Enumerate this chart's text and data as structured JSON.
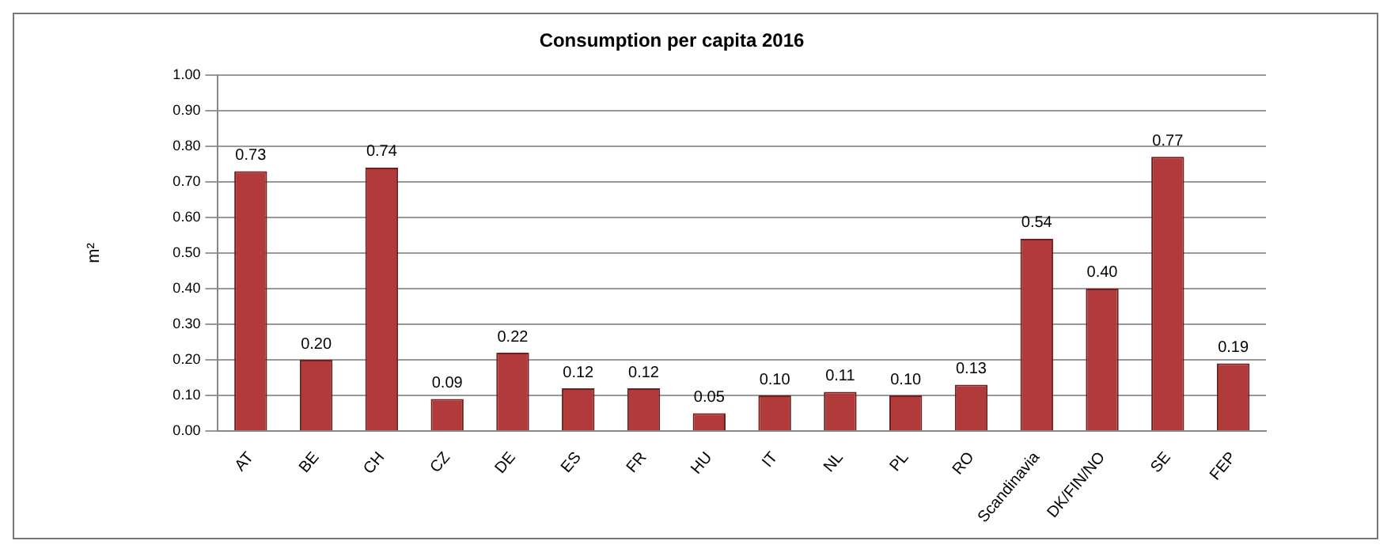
{
  "chart_data": {
    "type": "bar",
    "title": "Consumption per capita 2016",
    "ylabel": "m²",
    "categories": [
      "AT",
      "BE",
      "CH",
      "CZ",
      "DE",
      "ES",
      "FR",
      "HU",
      "IT",
      "NL",
      "PL",
      "RO",
      "Scandinavia",
      "DK/FIN/NO",
      "SE",
      "FEP"
    ],
    "values": [
      0.73,
      0.2,
      0.74,
      0.09,
      0.22,
      0.12,
      0.12,
      0.05,
      0.1,
      0.11,
      0.1,
      0.13,
      0.54,
      0.4,
      0.77,
      0.19
    ],
    "value_labels": [
      "0.73",
      "0.20",
      "0.74",
      "0.09",
      "0.22",
      "0.12",
      "0.12",
      "0.05",
      "0.10",
      "0.11",
      "0.10",
      "0.13",
      "0.54",
      "0.40",
      "0.77",
      "0.19"
    ],
    "color": "#b13b3b",
    "ylim": [
      0,
      1
    ],
    "yticks": [
      {
        "value": 0,
        "label": "0.00"
      },
      {
        "value": 0.1,
        "label": "0.10"
      },
      {
        "value": 0.2,
        "label": "0.20"
      },
      {
        "value": 0.3,
        "label": "0.30"
      },
      {
        "value": 0.4,
        "label": "0.40"
      },
      {
        "value": 0.5,
        "label": "0.50"
      },
      {
        "value": 0.6,
        "label": "0.60"
      },
      {
        "value": 0.7,
        "label": "0.70"
      },
      {
        "value": 0.8,
        "label": "0.80"
      },
      {
        "value": 0.9,
        "label": "0.90"
      },
      {
        "value": 1,
        "label": "1.00"
      }
    ],
    "grid": "y"
  }
}
